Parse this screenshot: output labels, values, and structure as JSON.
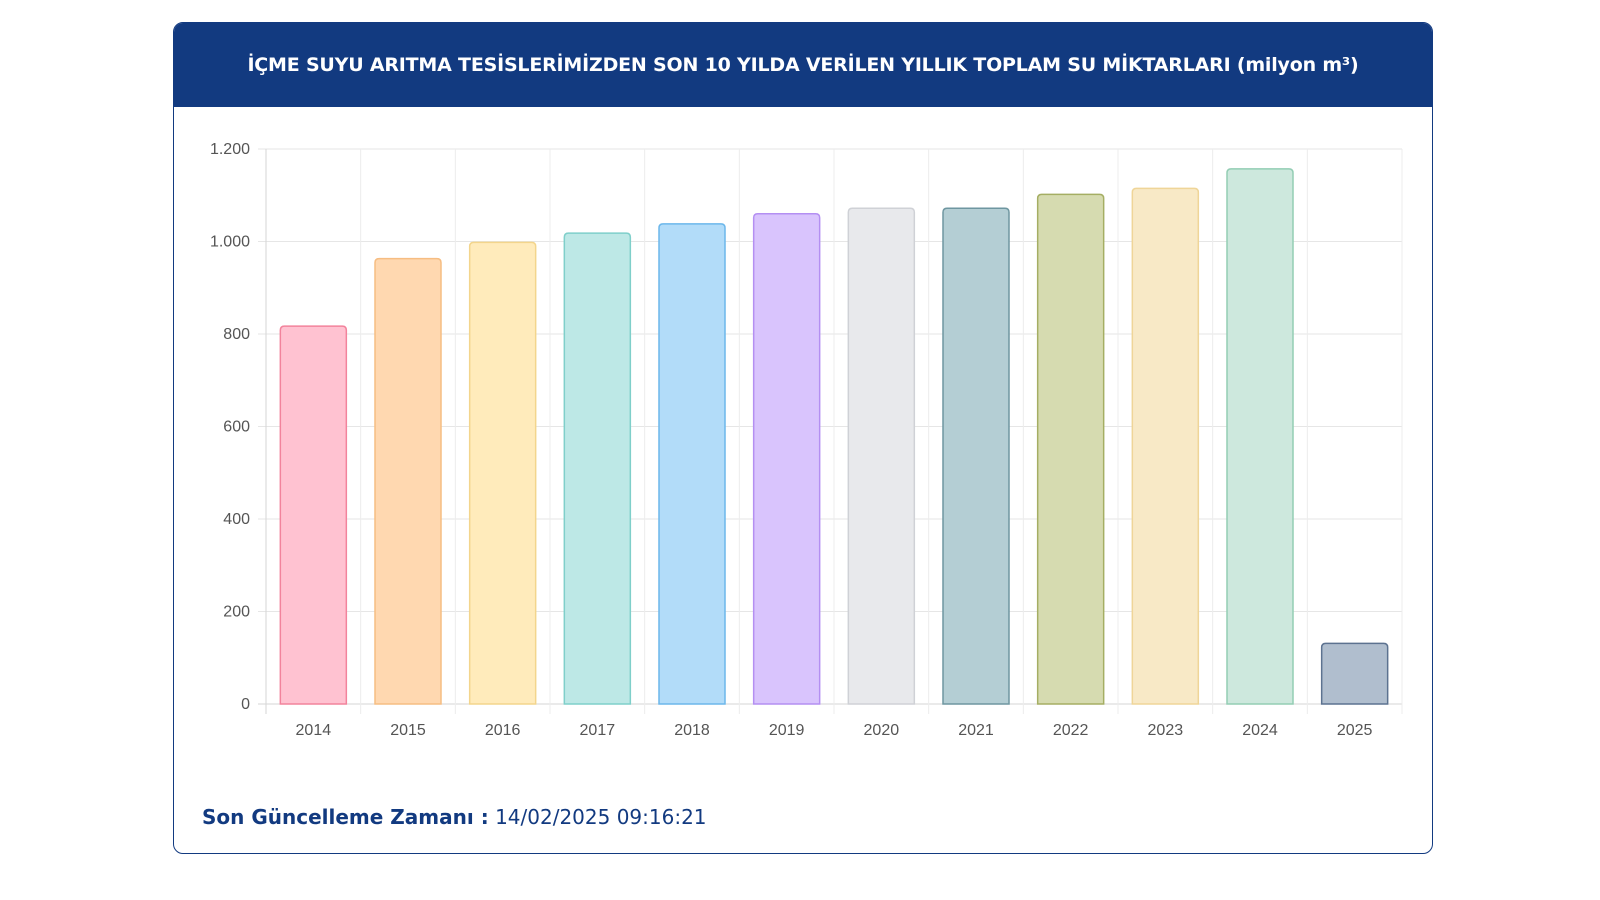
{
  "header": {
    "title": "İÇME SUYU ARITMA TESİSLERİMİZDEN SON 10 YILDA VERİLEN YILLIK TOPLAM SU MİKTARLARI (milyon m³)"
  },
  "footer": {
    "label": "Son Güncelleme Zamanı :",
    "value": "14/02/2025 09:16:21"
  },
  "chart_data": {
    "type": "bar",
    "title": "İÇME SUYU ARITMA TESİSLERİMİZDEN SON 10 YILDA VERİLEN YILLIK TOPLAM SU MİKTARLARI (milyon m³)",
    "categories": [
      "2014",
      "2015",
      "2016",
      "2017",
      "2018",
      "2019",
      "2020",
      "2021",
      "2022",
      "2023",
      "2024",
      "2025"
    ],
    "values": [
      817,
      963,
      998,
      1018,
      1038,
      1060,
      1072,
      1072,
      1102,
      1115,
      1157,
      131
    ],
    "ylim": [
      0,
      1200
    ],
    "yticks": [
      0,
      200,
      400,
      600,
      800,
      1000,
      1200
    ],
    "ytick_labels": [
      "0",
      "200",
      "400",
      "600",
      "800",
      "1.000",
      "1.200"
    ],
    "grid": true,
    "legend": "none",
    "colors": {
      "fill": [
        "#ffc2d1",
        "#ffd8b0",
        "#ffebbb",
        "#bde8e6",
        "#b2dcf9",
        "#d9c4fd",
        "#e8e9ec",
        "#b4ced4",
        "#d6dbb0",
        "#f8e9c6",
        "#cde8dd",
        "#b0bece"
      ],
      "stroke": [
        "#f2839c",
        "#f6bd82",
        "#f3d58c",
        "#7fcfca",
        "#6cb7eb",
        "#b48ff2",
        "#cfd1d6",
        "#6e96a0",
        "#a5ae63",
        "#efd598",
        "#93cdb4",
        "#5c7290"
      ]
    }
  }
}
